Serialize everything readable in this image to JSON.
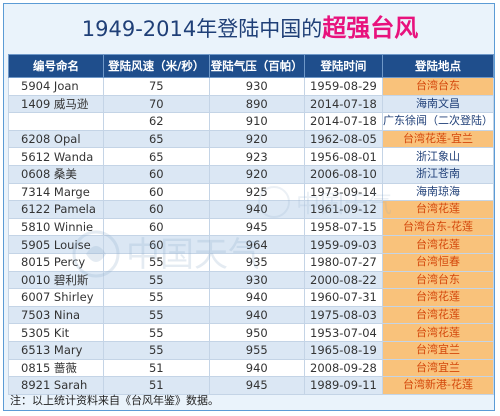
{
  "title": {
    "prefix": "1949-2014年登陆中国的",
    "highlight": "超强台风"
  },
  "table": {
    "headers": [
      "编号命名",
      "登陆风速（米/秒）",
      "登陆气压（百帕）",
      "登陆时间",
      "登陆地点"
    ],
    "rows": [
      {
        "name": "5904  Joan",
        "speed": "75",
        "pressure": "930",
        "date": "1959-08-29",
        "location": "台湾台东",
        "taiwan": true
      },
      {
        "name": "1409 威马逊",
        "speed": "70",
        "pressure": "890",
        "date": "2014-07-18",
        "location": "海南文昌",
        "taiwan": false
      },
      {
        "name": "",
        "speed": "62",
        "pressure": "910",
        "date": "2014-07-18",
        "location": "广东徐闻（二次登陆）",
        "taiwan": false
      },
      {
        "name": "6208 Opal",
        "speed": "65",
        "pressure": "920",
        "date": "1962-08-05",
        "location": "台湾花莲-宜兰",
        "taiwan": true
      },
      {
        "name": "5612 Wanda",
        "speed": "65",
        "pressure": "923",
        "date": "1956-08-01",
        "location": "浙江象山",
        "taiwan": false
      },
      {
        "name": "0608 桑美",
        "speed": "60",
        "pressure": "920",
        "date": "2006-08-10",
        "location": "浙江苍南",
        "taiwan": false
      },
      {
        "name": "7314 Marge",
        "speed": "60",
        "pressure": "925",
        "date": "1973-09-14",
        "location": "海南琼海",
        "taiwan": false
      },
      {
        "name": "6122 Pamela",
        "speed": "60",
        "pressure": "940",
        "date": "1961-09-12",
        "location": "台湾花莲",
        "taiwan": true
      },
      {
        "name": "5810 Winnie",
        "speed": "60",
        "pressure": "945",
        "date": "1958-07-15",
        "location": "台湾台东-花莲",
        "taiwan": true
      },
      {
        "name": "5905 Louise",
        "speed": "60",
        "pressure": "964",
        "date": "1959-09-03",
        "location": "台湾花莲",
        "taiwan": true
      },
      {
        "name": "8015 Percy",
        "speed": "55",
        "pressure": "935",
        "date": "1980-07-27",
        "location": "台湾恒春",
        "taiwan": true
      },
      {
        "name": "0010 碧利斯",
        "speed": "55",
        "pressure": "930",
        "date": "2000-08-22",
        "location": "台湾台东",
        "taiwan": true
      },
      {
        "name": "6007 Shirley",
        "speed": "55",
        "pressure": "940",
        "date": "1960-07-31",
        "location": "台湾花莲",
        "taiwan": true
      },
      {
        "name": "7503 Nina",
        "speed": "55",
        "pressure": "940",
        "date": "1975-08-03",
        "location": "台湾花莲",
        "taiwan": true
      },
      {
        "name": "5305 Kit",
        "speed": "55",
        "pressure": "950",
        "date": "1953-07-04",
        "location": "台湾花莲",
        "taiwan": true
      },
      {
        "name": "6513 Mary",
        "speed": "55",
        "pressure": "955",
        "date": "1965-08-19",
        "location": "台湾宜兰",
        "taiwan": true
      },
      {
        "name": "0815 蔷薇",
        "speed": "51",
        "pressure": "940",
        "date": "2008-09-28",
        "location": "台湾宜兰",
        "taiwan": true
      },
      {
        "name": "8921 Sarah",
        "speed": "51",
        "pressure": "945",
        "date": "1989-09-11",
        "location": "台湾新港-花莲",
        "taiwan": true
      }
    ]
  },
  "note": "注：以上统计资料来自《台风年鉴》数据。",
  "watermark": {
    "text": "中国天气"
  },
  "colors": {
    "header_bg": "#1f4e8c",
    "highlight": "#e8127d",
    "taiwan_cell": "#f9c27b",
    "taiwan_text": "#d4480c",
    "title": "#1f3f77"
  }
}
